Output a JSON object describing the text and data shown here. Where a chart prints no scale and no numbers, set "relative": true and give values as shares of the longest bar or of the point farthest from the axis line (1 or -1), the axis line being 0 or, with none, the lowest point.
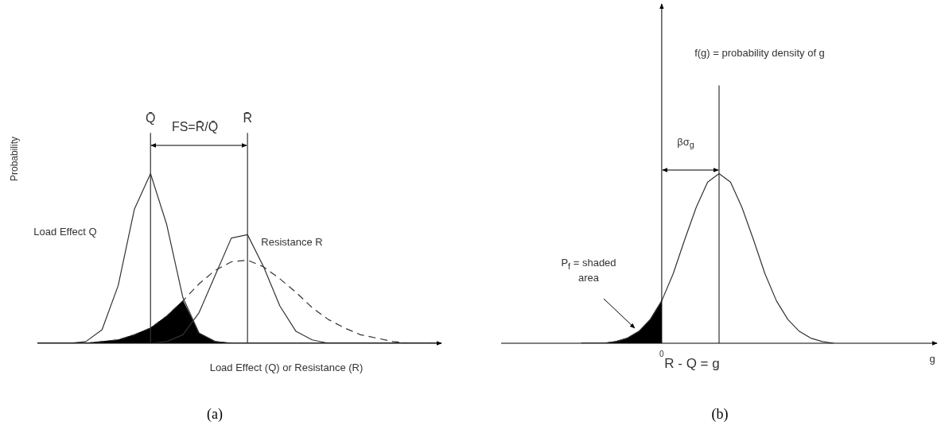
{
  "chart_data": [
    {
      "type": "line",
      "relative": true,
      "xlabel": "Load Effect (Q) or Resistance (R)",
      "ylabel": "Probability",
      "categories": [
        null,
        null,
        null,
        null,
        null,
        null,
        null,
        null,
        null,
        null,
        null,
        null,
        null,
        null,
        null,
        null,
        null,
        null,
        null,
        null,
        null,
        null,
        null,
        null,
        null,
        null
      ],
      "marker": "none",
      "series": [
        {
          "name": "Load Effect Q",
          "color": "#333333",
          "values": [
            0,
            0,
            0,
            0.01,
            0.08,
            0.34,
            0.79,
            1,
            0.7,
            0.27,
            0.06,
            0.01,
            0,
            0,
            0,
            0,
            0,
            0,
            0,
            0,
            0,
            0,
            0,
            0,
            0,
            0
          ]
        },
        {
          "name": "Resistance R",
          "color": "#333333",
          "values": [
            0,
            0,
            0,
            0,
            0,
            0,
            0,
            0,
            0.01,
            0.05,
            0.18,
            0.4,
            0.62,
            0.64,
            0.45,
            0.22,
            0.07,
            0.02,
            0,
            0,
            0,
            0,
            0,
            0,
            0,
            0
          ]
        },
        {
          "color": "#333333",
          "line_style": "dashed",
          "values": [
            0,
            0,
            0,
            0,
            0.01,
            0.02,
            0.05,
            0.09,
            0.16,
            0.25,
            0.35,
            0.43,
            0.48,
            0.49,
            0.45,
            0.38,
            0.3,
            0.21,
            0.14,
            0.09,
            0.05,
            0.03,
            0.01,
            0,
            0,
            0
          ]
        },
        {
          "type": "area",
          "color": "#000000",
          "values": [
            0,
            0,
            0,
            0,
            0.01,
            0.02,
            0.05,
            0.09,
            0.16,
            0.25,
            0.06,
            0.01,
            0,
            0,
            0,
            0,
            0,
            0,
            0,
            0,
            0,
            0,
            0,
            0,
            0,
            0
          ]
        }
      ],
      "ref_lines": [
        {
          "axis": "x",
          "label": "Q̄"
        },
        {
          "axis": "x",
          "label": "R̄"
        }
      ],
      "annotations": [
        "FS=R̄/Q̄",
        "(a)"
      ]
    },
    {
      "type": "line",
      "relative": true,
      "xlabel": "R - Q = g",
      "categories": [
        null,
        null,
        null,
        null,
        null,
        null,
        null,
        null,
        null,
        null,
        null,
        null,
        null,
        null,
        null,
        null,
        null,
        null,
        null,
        null,
        null,
        null,
        null,
        null,
        null,
        null,
        null,
        null,
        null,
        null,
        null,
        null,
        null,
        null,
        null,
        null,
        null,
        null,
        null
      ],
      "marker": "none",
      "series": [
        {
          "color": "#333333",
          "values": [
            null,
            null,
            null,
            null,
            null,
            null,
            null,
            0,
            0,
            0,
            0.01,
            0.03,
            0.07,
            0.14,
            0.25,
            0.41,
            0.61,
            0.8,
            0.95,
            1,
            0.95,
            0.8,
            0.61,
            0.41,
            0.25,
            0.14,
            0.07,
            0.03,
            0.01,
            0,
            null,
            null,
            null,
            null,
            null,
            null,
            null,
            null,
            null
          ]
        },
        {
          "type": "area",
          "color": "#000000",
          "values": [
            null,
            null,
            null,
            null,
            null,
            null,
            null,
            0,
            0,
            0,
            0.01,
            0.03,
            0.07,
            0.14,
            0.25,
            null,
            null,
            null,
            null,
            null,
            null,
            null,
            null,
            null,
            null,
            null,
            null,
            null,
            null,
            null,
            null,
            null,
            null,
            null,
            null,
            null,
            null,
            null,
            null
          ]
        }
      ],
      "ref_lines": [
        {
          "axis": "x"
        }
      ],
      "annotations": [
        "f(g) = probability density of g",
        "βσ$_{g}$",
        "P$_{f}$ = shaded area",
        "0",
        "g",
        "(b)"
      ]
    }
  ]
}
